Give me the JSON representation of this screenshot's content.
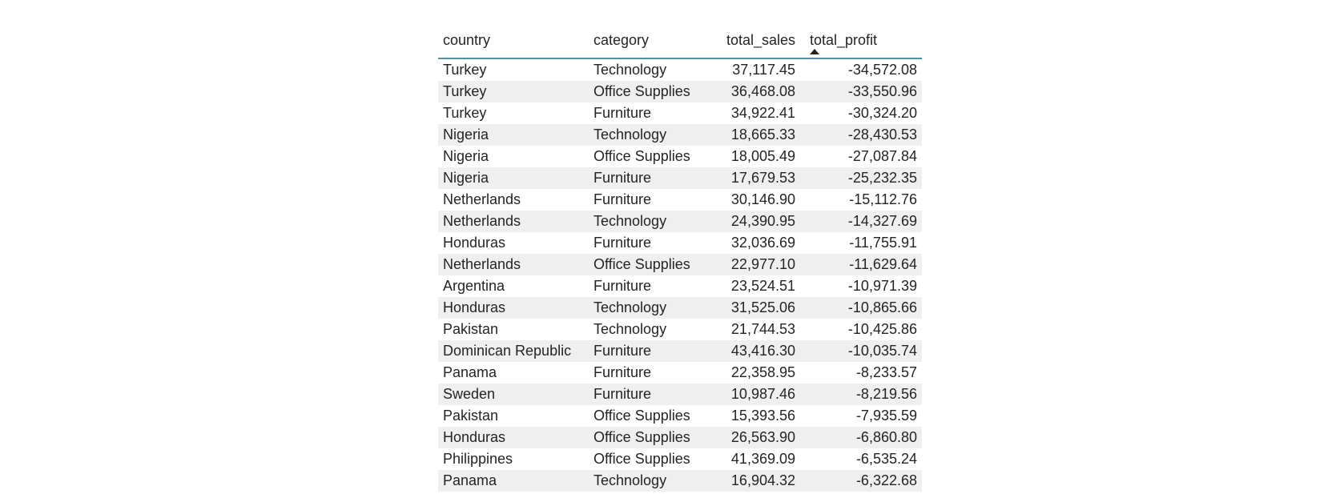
{
  "table": {
    "columns": {
      "country": "country",
      "category": "category",
      "total_sales": "total_sales",
      "total_profit": "total_profit"
    },
    "sort": {
      "column": "total_profit",
      "icon": "sort-ascending-icon"
    },
    "rows": [
      {
        "country": "Turkey",
        "category": "Technology",
        "total_sales": "37,117.45",
        "total_profit": "-34,572.08"
      },
      {
        "country": "Turkey",
        "category": "Office Supplies",
        "total_sales": "36,468.08",
        "total_profit": "-33,550.96"
      },
      {
        "country": "Turkey",
        "category": "Furniture",
        "total_sales": "34,922.41",
        "total_profit": "-30,324.20"
      },
      {
        "country": "Nigeria",
        "category": "Technology",
        "total_sales": "18,665.33",
        "total_profit": "-28,430.53"
      },
      {
        "country": "Nigeria",
        "category": "Office Supplies",
        "total_sales": "18,005.49",
        "total_profit": "-27,087.84"
      },
      {
        "country": "Nigeria",
        "category": "Furniture",
        "total_sales": "17,679.53",
        "total_profit": "-25,232.35"
      },
      {
        "country": "Netherlands",
        "category": "Furniture",
        "total_sales": "30,146.90",
        "total_profit": "-15,112.76"
      },
      {
        "country": "Netherlands",
        "category": "Technology",
        "total_sales": "24,390.95",
        "total_profit": "-14,327.69"
      },
      {
        "country": "Honduras",
        "category": "Furniture",
        "total_sales": "32,036.69",
        "total_profit": "-11,755.91"
      },
      {
        "country": "Netherlands",
        "category": "Office Supplies",
        "total_sales": "22,977.10",
        "total_profit": "-11,629.64"
      },
      {
        "country": "Argentina",
        "category": "Furniture",
        "total_sales": "23,524.51",
        "total_profit": "-10,971.39"
      },
      {
        "country": "Honduras",
        "category": "Technology",
        "total_sales": "31,525.06",
        "total_profit": "-10,865.66"
      },
      {
        "country": "Pakistan",
        "category": "Technology",
        "total_sales": "21,744.53",
        "total_profit": "-10,425.86"
      },
      {
        "country": "Dominican Republic",
        "category": "Furniture",
        "total_sales": "43,416.30",
        "total_profit": "-10,035.74"
      },
      {
        "country": "Panama",
        "category": "Furniture",
        "total_sales": "22,358.95",
        "total_profit": "-8,233.57"
      },
      {
        "country": "Sweden",
        "category": "Furniture",
        "total_sales": "10,987.46",
        "total_profit": "-8,219.56"
      },
      {
        "country": "Pakistan",
        "category": "Office Supplies",
        "total_sales": "15,393.56",
        "total_profit": "-7,935.59"
      },
      {
        "country": "Honduras",
        "category": "Office Supplies",
        "total_sales": "26,563.90",
        "total_profit": "-6,860.80"
      },
      {
        "country": "Philippines",
        "category": "Office Supplies",
        "total_sales": "41,369.09",
        "total_profit": "-6,535.24"
      },
      {
        "country": "Panama",
        "category": "Technology",
        "total_sales": "16,904.32",
        "total_profit": "-6,322.68"
      }
    ]
  }
}
